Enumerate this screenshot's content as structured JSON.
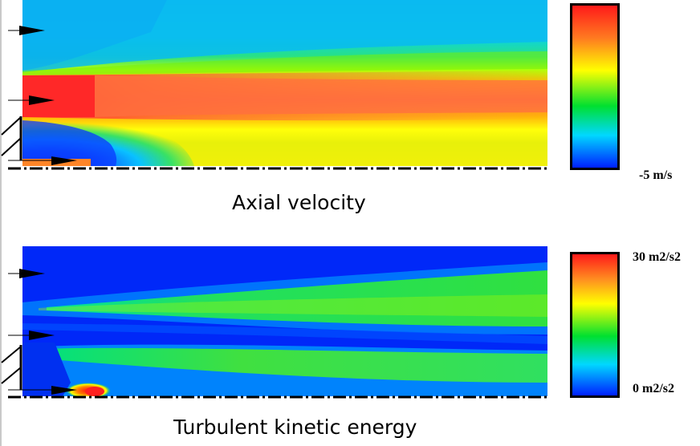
{
  "panels": [
    {
      "id": "axial-velocity",
      "caption": "Axial velocity",
      "colorbar": {
        "max_label": "",
        "min_label": "-5 m/s"
      },
      "colormap": [
        "#0019ff",
        "#00c8ff",
        "#00e030",
        "#ffff00",
        "#ff1a1a"
      ]
    },
    {
      "id": "turbulent-kinetic-energy",
      "caption": "Turbulent kinetic energy",
      "colorbar": {
        "max_label": "30 m2/s2",
        "min_label": "0 m2/s2"
      },
      "colormap": [
        "#0019ff",
        "#00c8ff",
        "#00e030",
        "#ffff00",
        "#ff1a1a"
      ]
    }
  ]
}
